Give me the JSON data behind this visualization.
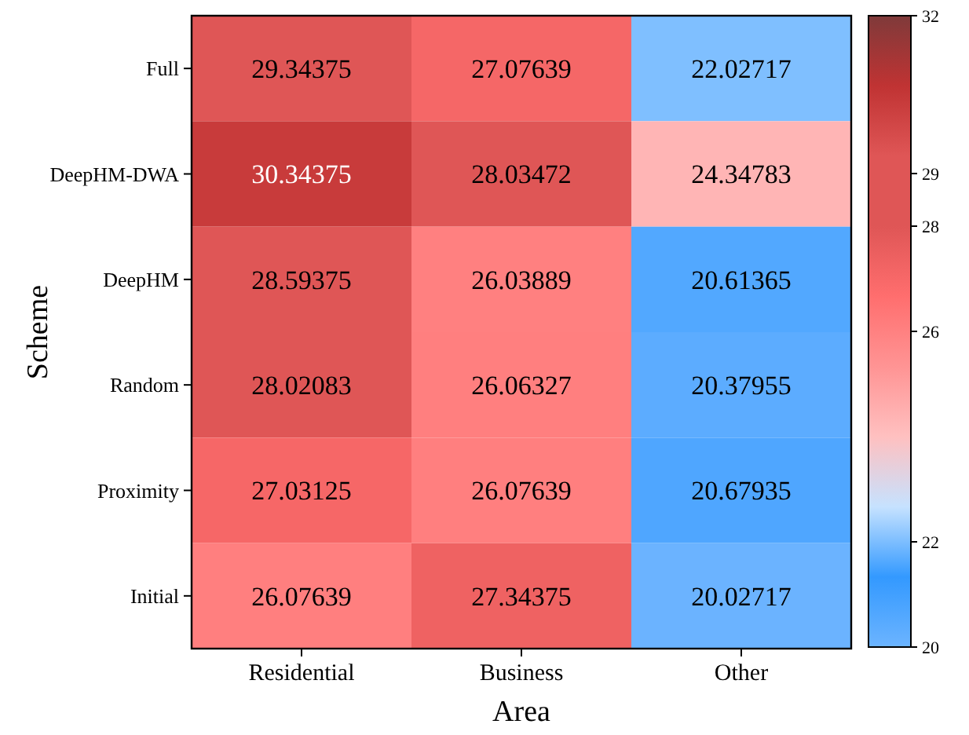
{
  "chart_data": {
    "type": "heatmap",
    "xlabel": "Area",
    "ylabel": "Scheme",
    "categories": [
      "Residential",
      "Business",
      "Other"
    ],
    "y_categories": [
      "Full",
      "DeepHM-DWA",
      "DeepHM",
      "Random",
      "Proximity",
      "Initial"
    ],
    "cells": [
      [
        29.34375,
        27.07639,
        22.02717
      ],
      [
        30.34375,
        28.03472,
        24.34783
      ],
      [
        28.59375,
        26.03889,
        20.61365
      ],
      [
        28.02083,
        26.06327,
        20.37955
      ],
      [
        27.03125,
        26.07639,
        20.67935
      ],
      [
        26.07639,
        27.34375,
        20.02717
      ]
    ],
    "data_labels": true,
    "clim": [
      20,
      32
    ],
    "cticks": [
      20,
      22,
      26,
      28,
      29,
      32
    ],
    "colors": [
      "#6cb4ff",
      "#3399ff",
      "#c6e2ff",
      "#ffc0c0",
      "#ff9494",
      "#ff6e6e",
      "#df5656",
      "#df5656",
      "#c03333",
      "#7f3a3a"
    ]
  }
}
